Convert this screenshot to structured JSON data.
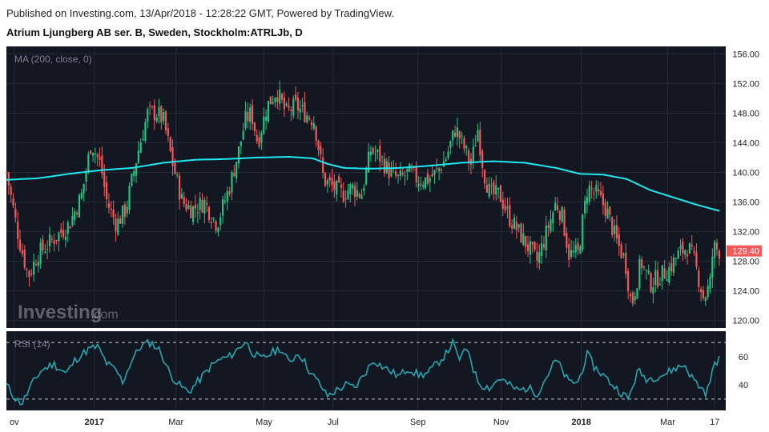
{
  "header": {
    "published": "Published on Investing.com, 13/Apr/2018 - 12:28:22 GMT, Powered by TradingView.",
    "instrument": "Atrium Ljungberg AB ser. B, Sweden, Stockholm:ATRLJb, D"
  },
  "colors": {
    "background": "#131722",
    "up": "#26c281",
    "down": "#f25a5a",
    "ma": "#1de9f0",
    "rsi": "#26a6b0",
    "price_label": "#f25a5a",
    "axis_text": "#222222"
  },
  "watermark": {
    "brand": "Investing",
    "suffix": ".com"
  },
  "chart_data": [
    {
      "type": "candlestick",
      "indicator_label": "MA (200, close, 0)",
      "y_ticks": [
        156,
        152,
        148,
        144,
        140,
        136,
        132,
        128,
        124,
        120
      ],
      "y_tick_labels": [
        "156.00",
        "152.00",
        "148.00",
        "144.00",
        "140.00",
        "136.00",
        "132.00",
        "128.00",
        "124.00",
        "120.00"
      ],
      "ylim": [
        119,
        157
      ],
      "last_price": 129.4,
      "last_price_label": "129.40",
      "x_tick_labels": [
        "ov",
        "2017",
        "Mar",
        "May",
        "Jul",
        "Sep",
        "Nov",
        "2018",
        "Mar",
        "17"
      ],
      "x_tick_days": [
        5,
        56,
        108,
        164,
        208,
        262,
        315,
        366,
        421,
        451
      ],
      "x_range_days": [
        0,
        458
      ],
      "close_keypoints": [
        [
          0,
          140
        ],
        [
          8,
          131
        ],
        [
          14,
          126
        ],
        [
          20,
          129
        ],
        [
          30,
          131
        ],
        [
          40,
          133
        ],
        [
          48,
          137
        ],
        [
          54,
          144
        ],
        [
          60,
          141
        ],
        [
          64,
          136
        ],
        [
          70,
          133
        ],
        [
          76,
          135
        ],
        [
          84,
          143
        ],
        [
          90,
          148
        ],
        [
          96,
          148
        ],
        [
          100,
          147
        ],
        [
          106,
          141
        ],
        [
          112,
          136
        ],
        [
          118,
          135
        ],
        [
          126,
          136
        ],
        [
          134,
          133
        ],
        [
          142,
          138
        ],
        [
          148,
          143
        ],
        [
          152,
          147
        ],
        [
          156,
          148
        ],
        [
          160,
          144
        ],
        [
          166,
          149
        ],
        [
          172,
          151
        ],
        [
          178,
          148
        ],
        [
          184,
          149
        ],
        [
          190,
          148
        ],
        [
          196,
          147
        ],
        [
          202,
          139
        ],
        [
          208,
          138
        ],
        [
          214,
          137
        ],
        [
          220,
          138
        ],
        [
          226,
          137
        ],
        [
          232,
          143
        ],
        [
          238,
          142
        ],
        [
          244,
          140
        ],
        [
          250,
          139
        ],
        [
          256,
          140
        ],
        [
          262,
          139
        ],
        [
          268,
          139
        ],
        [
          274,
          140
        ],
        [
          280,
          142
        ],
        [
          286,
          146
        ],
        [
          292,
          143
        ],
        [
          296,
          141
        ],
        [
          300,
          146
        ],
        [
          304,
          140
        ],
        [
          308,
          137
        ],
        [
          314,
          137
        ],
        [
          320,
          134
        ],
        [
          326,
          132
        ],
        [
          332,
          130
        ],
        [
          338,
          128
        ],
        [
          344,
          132
        ],
        [
          350,
          136
        ],
        [
          354,
          134
        ],
        [
          358,
          129
        ],
        [
          364,
          129
        ],
        [
          370,
          138
        ],
        [
          376,
          137
        ],
        [
          382,
          135
        ],
        [
          388,
          131
        ],
        [
          394,
          128
        ],
        [
          398,
          122
        ],
        [
          404,
          128
        ],
        [
          410,
          125
        ],
        [
          416,
          126
        ],
        [
          422,
          127
        ],
        [
          428,
          129
        ],
        [
          434,
          130
        ],
        [
          438,
          128
        ],
        [
          444,
          123
        ],
        [
          448,
          125
        ],
        [
          450,
          130
        ],
        [
          454,
          129.4
        ]
      ],
      "ma_keypoints": [
        [
          0,
          139
        ],
        [
          20,
          139.2
        ],
        [
          40,
          139.8
        ],
        [
          60,
          140.3
        ],
        [
          80,
          140.6
        ],
        [
          100,
          141.3
        ],
        [
          120,
          141.7
        ],
        [
          140,
          141.8
        ],
        [
          160,
          142
        ],
        [
          180,
          142.1
        ],
        [
          195,
          141.9
        ],
        [
          205,
          141.1
        ],
        [
          215,
          140.6
        ],
        [
          230,
          140.5
        ],
        [
          250,
          140.6
        ],
        [
          270,
          140.9
        ],
        [
          290,
          141.3
        ],
        [
          310,
          141.5
        ],
        [
          330,
          141.3
        ],
        [
          350,
          140.6
        ],
        [
          365,
          139.8
        ],
        [
          380,
          139.7
        ],
        [
          395,
          139.1
        ],
        [
          410,
          137.6
        ],
        [
          425,
          136.6
        ],
        [
          440,
          135.6
        ],
        [
          454,
          134.8
        ]
      ]
    },
    {
      "type": "line",
      "indicator_label": "RSI (14)",
      "y_ticks": [
        60,
        40
      ],
      "y_tick_labels": [
        "60",
        "40"
      ],
      "ylim": [
        22,
        78
      ],
      "bands": [
        70,
        30
      ],
      "rsi_keypoints": [
        [
          0,
          40
        ],
        [
          6,
          30
        ],
        [
          10,
          27
        ],
        [
          16,
          40
        ],
        [
          22,
          50
        ],
        [
          30,
          55
        ],
        [
          38,
          48
        ],
        [
          44,
          58
        ],
        [
          52,
          65
        ],
        [
          58,
          67
        ],
        [
          64,
          55
        ],
        [
          70,
          50
        ],
        [
          74,
          42
        ],
        [
          80,
          58
        ],
        [
          86,
          68
        ],
        [
          92,
          70
        ],
        [
          98,
          64
        ],
        [
          104,
          48
        ],
        [
          110,
          40
        ],
        [
          116,
          35
        ],
        [
          124,
          45
        ],
        [
          130,
          53
        ],
        [
          136,
          58
        ],
        [
          142,
          60
        ],
        [
          148,
          66
        ],
        [
          152,
          71
        ],
        [
          156,
          64
        ],
        [
          162,
          58
        ],
        [
          168,
          62
        ],
        [
          174,
          66
        ],
        [
          180,
          56
        ],
        [
          186,
          63
        ],
        [
          190,
          56
        ],
        [
          194,
          48
        ],
        [
          200,
          40
        ],
        [
          204,
          32
        ],
        [
          210,
          36
        ],
        [
          216,
          40
        ],
        [
          222,
          38
        ],
        [
          228,
          48
        ],
        [
          234,
          58
        ],
        [
          238,
          54
        ],
        [
          244,
          50
        ],
        [
          250,
          46
        ],
        [
          256,
          52
        ],
        [
          262,
          47
        ],
        [
          268,
          48
        ],
        [
          274,
          55
        ],
        [
          280,
          62
        ],
        [
          284,
          70
        ],
        [
          288,
          58
        ],
        [
          294,
          66
        ],
        [
          298,
          48
        ],
        [
          302,
          40
        ],
        [
          308,
          38
        ],
        [
          314,
          45
        ],
        [
          320,
          40
        ],
        [
          326,
          36
        ],
        [
          332,
          38
        ],
        [
          338,
          34
        ],
        [
          344,
          46
        ],
        [
          350,
          58
        ],
        [
          354,
          50
        ],
        [
          358,
          42
        ],
        [
          364,
          42
        ],
        [
          370,
          62
        ],
        [
          374,
          53
        ],
        [
          380,
          47
        ],
        [
          386,
          40
        ],
        [
          392,
          34
        ],
        [
          396,
          30
        ],
        [
          402,
          50
        ],
        [
          408,
          44
        ],
        [
          414,
          46
        ],
        [
          420,
          48
        ],
        [
          426,
          52
        ],
        [
          432,
          54
        ],
        [
          436,
          46
        ],
        [
          442,
          38
        ],
        [
          446,
          34
        ],
        [
          450,
          52
        ],
        [
          454,
          60
        ]
      ]
    }
  ]
}
